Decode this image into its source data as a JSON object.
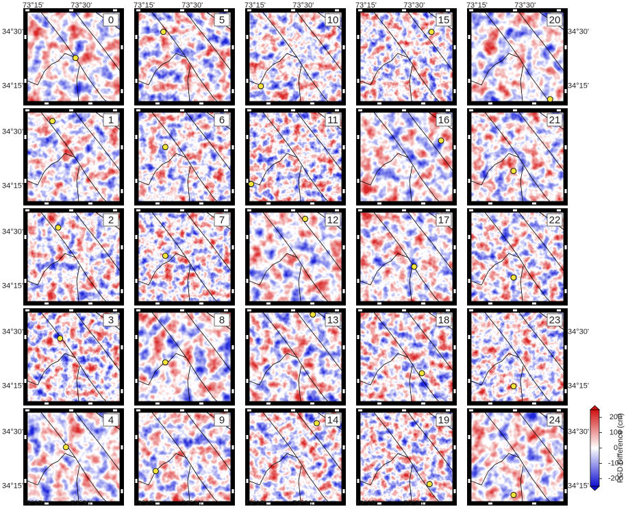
{
  "chart_data": {
    "type": "map-grid",
    "xlim": [
      73.22,
      73.7
    ],
    "ylim": [
      34.18,
      34.59
    ],
    "xticks": [
      {
        "value": 73.25,
        "label": "73°15'"
      },
      {
        "value": 73.5,
        "label": "73°30'"
      }
    ],
    "yticks": [
      {
        "value": 34.25,
        "label": "34°15'"
      },
      {
        "value": 34.5,
        "label": "34°30'"
      }
    ],
    "epicenter_color": "#f2e33a",
    "panels": [
      {
        "label": "0",
        "epicenter": [
          73.47,
          34.38
        ]
      },
      {
        "label": "1",
        "epicenter": [
          73.35,
          34.55
        ]
      },
      {
        "label": "2",
        "epicenter": [
          73.38,
          34.52
        ]
      },
      {
        "label": "3",
        "epicenter": [
          73.39,
          34.47
        ]
      },
      {
        "label": "4",
        "epicenter": [
          73.42,
          34.43
        ]
      },
      {
        "label": "5",
        "epicenter": [
          73.35,
          34.5
        ]
      },
      {
        "label": "6",
        "epicenter": [
          73.36,
          34.43
        ]
      },
      {
        "label": "7",
        "epicenter": [
          73.36,
          34.39
        ]
      },
      {
        "label": "8",
        "epicenter": [
          73.36,
          34.36
        ]
      },
      {
        "label": "9",
        "epicenter": [
          73.31,
          34.32
        ]
      },
      {
        "label": "10",
        "epicenter": [
          73.28,
          34.25
        ]
      },
      {
        "label": "11",
        "epicenter": [
          73.23,
          34.26
        ]
      },
      {
        "label": "12",
        "epicenter": [
          73.51,
          34.56
        ]
      },
      {
        "label": "13",
        "epicenter": [
          73.55,
          34.58
        ]
      },
      {
        "label": "14",
        "epicenter": [
          73.57,
          34.54
        ]
      },
      {
        "label": "15",
        "epicenter": [
          73.59,
          34.5
        ]
      },
      {
        "label": "16",
        "epicenter": [
          73.64,
          34.46
        ]
      },
      {
        "label": "17",
        "epicenter": [
          73.5,
          34.34
        ]
      },
      {
        "label": "18",
        "epicenter": [
          73.54,
          34.31
        ]
      },
      {
        "label": "19",
        "epicenter": [
          73.58,
          34.26
        ]
      },
      {
        "label": "20",
        "epicenter": [
          73.63,
          34.19
        ]
      },
      {
        "label": "21",
        "epicenter": [
          73.44,
          34.32
        ]
      },
      {
        "label": "22",
        "epicenter": [
          73.44,
          34.29
        ]
      },
      {
        "label": "23",
        "epicenter": [
          73.44,
          34.25
        ]
      },
      {
        "label": "24",
        "epicenter": [
          73.44,
          34.21
        ]
      }
    ],
    "colorbar": {
      "label": "PGD Difference (cm)",
      "lim": [
        -250,
        250
      ],
      "ticks": [
        -200,
        -100,
        0,
        100,
        200
      ],
      "colors": [
        "#1010d0",
        "#ffffff",
        "#d01010"
      ]
    }
  }
}
